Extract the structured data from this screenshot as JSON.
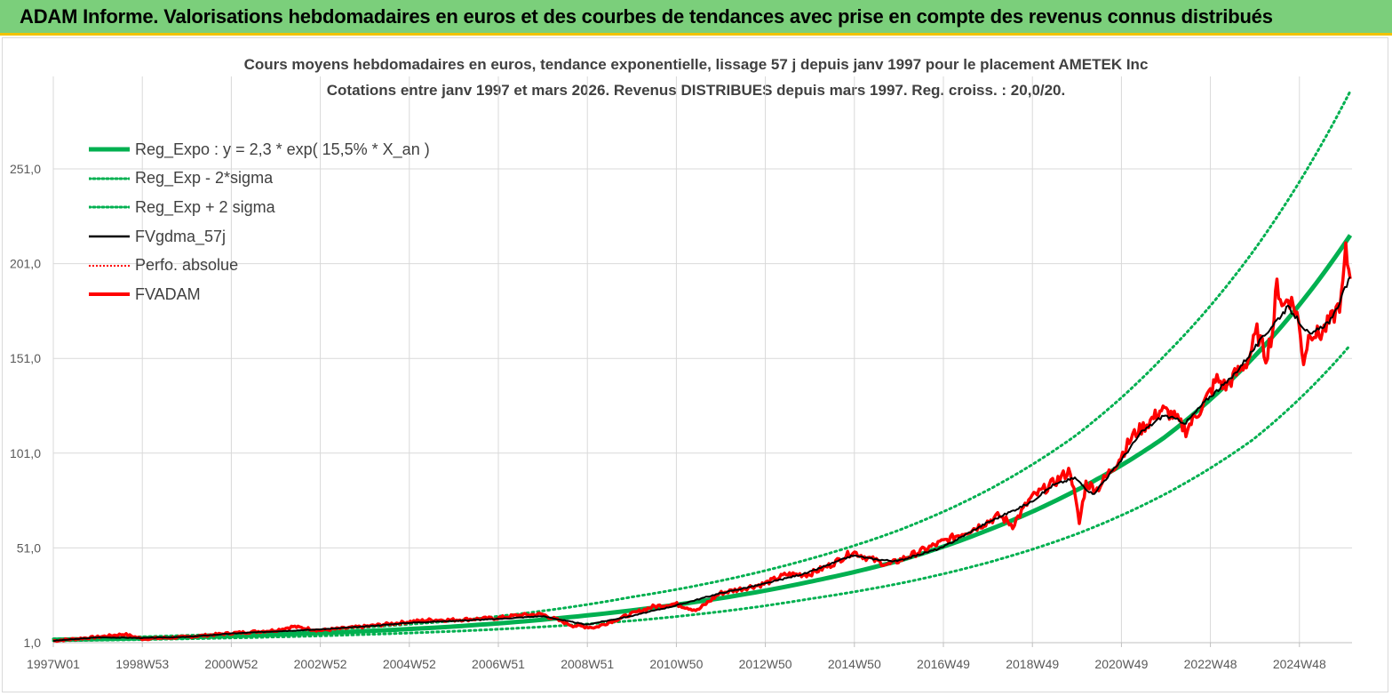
{
  "banner": {
    "title": "ADAM Informe. Valorisations hebdomadaires en euros et des courbes de tendances avec prise en compte des revenus connus distribués"
  },
  "chart_data": {
    "type": "line",
    "title": "Cours moyens hebdomadaires en euros, tendance exponentielle, lissage 57 j depuis janv 1997 pour le placement AMETEK Inc",
    "subtitle": "Cotations entre janv 1997 et mars 2026. Revenus DISTRIBUES depuis mars 1997. Reg. croiss. : 20,0/20.",
    "x_tick_labels": [
      "1997W01",
      "1998W53",
      "2000W52",
      "2002W52",
      "2004W52",
      "2006W51",
      "2008W51",
      "2010W50",
      "2012W50",
      "2014W50",
      "2016W49",
      "2018W49",
      "2020W49",
      "2022W48",
      "2024W48"
    ],
    "y_tick_labels": [
      "1,0",
      "51,0",
      "101,0",
      "151,0",
      "201,0",
      "251,0"
    ],
    "ylim": [
      1,
      286
    ],
    "xlim": [
      1997.0,
      2026.2
    ],
    "grid": true,
    "legend_position": "top-left",
    "colors": {
      "reg_expo": "#00b050",
      "sigma": "#00b050",
      "fvgdma": "#000000",
      "perfo": "#ff0000",
      "fvadam": "#ff0000",
      "grid": "#d9d9d9",
      "banner": "#7bcf7b"
    },
    "series": [
      {
        "name": "Reg_Expo : y = 2,3 * exp( 15,5% *  X_an )",
        "style": "solid-thick",
        "color": "#00b050"
      },
      {
        "name": "Reg_Exp - 2*sigma",
        "style": "dotted",
        "color": "#00b050"
      },
      {
        "name": "Reg_Exp + 2 sigma",
        "style": "dotted",
        "color": "#00b050"
      },
      {
        "name": "FVgdma_57j",
        "style": "solid-thin",
        "color": "#000000"
      },
      {
        "name": "Perfo. absolue",
        "style": "dotted",
        "color": "#ff0000"
      },
      {
        "name": "FVADAM",
        "style": "solid-thick",
        "color": "#ff0000"
      }
    ],
    "trend": {
      "x": [
        1997.0,
        2006.0,
        2010.0,
        2014.0,
        2016.0,
        2018.0,
        2020.0,
        2022.0,
        2024.0,
        2026.2
      ],
      "reg_expo": [
        2.5,
        9.5,
        18.0,
        33.0,
        44.0,
        60.0,
        81.0,
        109.0,
        151.0,
        216.0
      ],
      "minus_2sigma": [
        2.0,
        7.0,
        12.5,
        24.0,
        32.0,
        43.0,
        58.0,
        79.0,
        108.0,
        158.0
      ],
      "plus_2sigma": [
        3.0,
        12.5,
        25.0,
        45.0,
        60.0,
        81.0,
        110.0,
        152.0,
        207.0,
        292.0
      ]
    },
    "fvadam": {
      "x": [
        1997.0,
        1998.0,
        1998.6,
        1999.0,
        2000.0,
        2001.0,
        2002.0,
        2002.4,
        2003.0,
        2004.0,
        2005.0,
        2005.5,
        2006.0,
        2007.0,
        2007.5,
        2008.0,
        2008.7,
        2009.2,
        2010.0,
        2010.5,
        2011.0,
        2011.5,
        2012.0,
        2013.0,
        2013.5,
        2014.0,
        2014.5,
        2015.0,
        2015.3,
        2015.8,
        2016.3,
        2016.8,
        2017.2,
        2017.8,
        2018.3,
        2018.6,
        2019.0,
        2019.5,
        2019.9,
        2020.1,
        2020.25,
        2020.5,
        2021.0,
        2021.3,
        2021.7,
        2021.95,
        2022.2,
        2022.5,
        2022.9,
        2023.2,
        2023.4,
        2023.6,
        2023.9,
        2024.1,
        2024.3,
        2024.45,
        2024.55,
        2024.7,
        2024.8,
        2025.0,
        2025.15,
        2025.3,
        2025.5,
        2025.8,
        2026.0,
        2026.1,
        2026.2
      ],
      "y": [
        2.0,
        4.0,
        5.5,
        3.0,
        4.0,
        6.0,
        7.5,
        9.5,
        7.5,
        9.5,
        12.0,
        13.0,
        13.0,
        14.0,
        15.5,
        16.0,
        10.0,
        9.0,
        16.0,
        20.0,
        21.5,
        18.0,
        27.0,
        32.0,
        37.0,
        37.0,
        42.0,
        49.0,
        46.0,
        42.0,
        47.0,
        52.0,
        56.0,
        62.0,
        68.0,
        63.0,
        77.0,
        85.0,
        92.0,
        64.0,
        85.0,
        82.0,
        98.0,
        110.0,
        118.0,
        124.0,
        121.0,
        113.0,
        127.0,
        140.0,
        136.0,
        142.0,
        150.0,
        165.0,
        152.0,
        165.0,
        190.0,
        178.0,
        184.0,
        175.0,
        150.0,
        166.0,
        163.0,
        172.0,
        182.0,
        207.0,
        193.0
      ]
    },
    "fvgdma": {
      "x": [
        1997.0,
        1998.0,
        1999.0,
        2000.0,
        2001.0,
        2002.0,
        2003.0,
        2004.0,
        2005.0,
        2006.0,
        2007.0,
        2008.0,
        2009.0,
        2010.0,
        2011.0,
        2012.0,
        2013.0,
        2014.0,
        2015.0,
        2015.5,
        2016.0,
        2017.0,
        2018.0,
        2019.0,
        2019.5,
        2020.0,
        2020.4,
        2021.0,
        2021.5,
        2022.0,
        2022.5,
        2023.0,
        2023.5,
        2024.0,
        2024.5,
        2024.8,
        2025.0,
        2025.3,
        2025.8,
        2026.2
      ],
      "y": [
        2.0,
        3.8,
        3.5,
        4.0,
        5.8,
        7.0,
        8.0,
        9.5,
        11.5,
        12.5,
        13.5,
        15.0,
        10.5,
        15.0,
        20.5,
        27.0,
        32.0,
        38.0,
        47.0,
        45.0,
        44.0,
        51.0,
        64.0,
        75.0,
        84.0,
        88.0,
        79.0,
        96.0,
        112.0,
        121.0,
        117.0,
        130.0,
        140.0,
        155.0,
        170.0,
        178.0,
        172.0,
        163.0,
        172.0,
        194.0
      ]
    }
  }
}
